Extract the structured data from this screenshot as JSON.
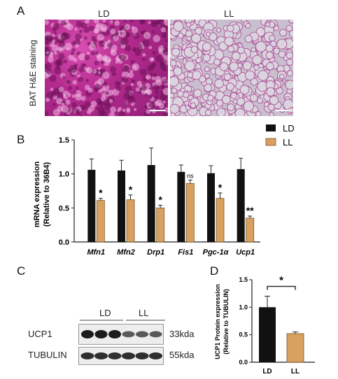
{
  "panels": {
    "a": "A",
    "b": "B",
    "c": "C",
    "d": "D"
  },
  "histology": {
    "ylabel": "BAT H&E staining",
    "ld_label": "LD",
    "ll_label": "LL"
  },
  "blot": {
    "group_ld": "LD",
    "group_ll": "LL",
    "rows": [
      {
        "name": "UCP1",
        "size": "33kda"
      },
      {
        "name": "TUBULIN",
        "size": "55kda"
      }
    ]
  },
  "colors": {
    "ld": "#111111",
    "ll": "#d9a160",
    "ll_stroke": "#7a5424"
  },
  "chart_data": [
    {
      "type": "bar",
      "ylabel": "mRNA expression",
      "ylabel2": "(Relative to 36B4)",
      "ylim": [
        0,
        1.5
      ],
      "yticks": [
        "0.0",
        "0.5",
        "1.0",
        "1.5"
      ],
      "categories": [
        "Mfn1",
        "Mfn2",
        "Drp1",
        "Fis1",
        "Pgc-1α",
        "Ucp1"
      ],
      "series": [
        {
          "name": "LD",
          "values": [
            1.06,
            1.05,
            1.13,
            1.03,
            1.01,
            1.07
          ],
          "errors": [
            0.16,
            0.15,
            0.25,
            0.1,
            0.11,
            0.16
          ]
        },
        {
          "name": "LL",
          "values": [
            0.61,
            0.62,
            0.5,
            0.86,
            0.64,
            0.35
          ],
          "errors": [
            0.03,
            0.07,
            0.04,
            0.05,
            0.08,
            0.03
          ]
        }
      ],
      "annotations": [
        "*",
        "*",
        "*",
        "ns",
        "*",
        "**"
      ],
      "legend": "top-right"
    },
    {
      "type": "bar",
      "ylabel": "UCP1 Protein expression",
      "ylabel2": "(Relative to TUBULIN)",
      "ylim": [
        0,
        1.5
      ],
      "yticks": [
        "0.0",
        "0.5",
        "1.0",
        "1.5"
      ],
      "categories": [
        "LD",
        "LL"
      ],
      "values": [
        1.0,
        0.52
      ],
      "errors": [
        0.2,
        0.03
      ],
      "significance": "*"
    }
  ]
}
